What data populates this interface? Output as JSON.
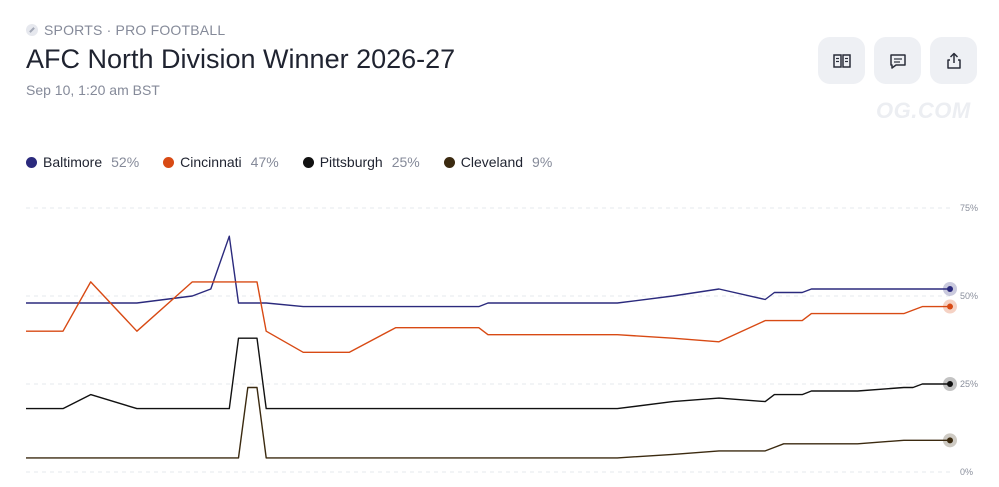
{
  "header": {
    "category": "SPORTS · PRO FOOTBALL",
    "title": "AFC North Division Winner 2026-27",
    "date": "Sep 10, 1:20 am BST",
    "watermark": "OG.COM"
  },
  "actions": {
    "icons": [
      "rules-book-icon",
      "comment-icon",
      "share-icon"
    ]
  },
  "legend": [
    {
      "name": "Baltimore",
      "value": "52%",
      "color": "#2b2a7d"
    },
    {
      "name": "Cincinnati",
      "value": "47%",
      "color": "#d84a14"
    },
    {
      "name": "Pittsburgh",
      "value": "25%",
      "color": "#111111"
    },
    {
      "name": "Cleveland",
      "value": "9%",
      "color": "#3b2a10"
    }
  ],
  "chart_data": {
    "type": "line",
    "title": "",
    "xlabel": "",
    "ylabel": "",
    "ylim": [
      0,
      75
    ],
    "yticks": [
      "75%",
      "50%",
      "25%",
      "0%"
    ],
    "grid": true,
    "legend_position": "top",
    "x": [
      0,
      4,
      7,
      12,
      18,
      20,
      22,
      23,
      24,
      24.5,
      25,
      26,
      30,
      35,
      40,
      45,
      48,
      49,
      50,
      52,
      53,
      55,
      56,
      57,
      58,
      59,
      60,
      61,
      62,
      64,
      70,
      75,
      80,
      81,
      82,
      84,
      85,
      90,
      95,
      96,
      97,
      98,
      100
    ],
    "series": [
      {
        "name": "Baltimore",
        "color": "#2b2a7d",
        "values": [
          48,
          48,
          48,
          48,
          50,
          52,
          67,
          48,
          48,
          48,
          48,
          48,
          47,
          47,
          47,
          47,
          47,
          47,
          48,
          48,
          48,
          48,
          48,
          48,
          48,
          48,
          48,
          48,
          48,
          48,
          50,
          52,
          49,
          51,
          51,
          51,
          52,
          52,
          52,
          52,
          52,
          52,
          52
        ]
      },
      {
        "name": "Cincinnati",
        "color": "#d84a14",
        "values": [
          40,
          40,
          54,
          40,
          54,
          54,
          54,
          54,
          54,
          54,
          54,
          40,
          34,
          34,
          41,
          41,
          41,
          41,
          39,
          39,
          39,
          39,
          39,
          39,
          39,
          39,
          39,
          39,
          39,
          39,
          38,
          37,
          43,
          43,
          43,
          43,
          45,
          45,
          45,
          46,
          47,
          47,
          47
        ]
      },
      {
        "name": "Pittsburgh",
        "color": "#111111",
        "values": [
          18,
          18,
          22,
          18,
          18,
          18,
          18,
          38,
          38,
          38,
          38,
          18,
          18,
          18,
          18,
          18,
          18,
          18,
          18,
          18,
          18,
          18,
          18,
          18,
          18,
          18,
          18,
          18,
          18,
          18,
          20,
          21,
          20,
          22,
          22,
          22,
          23,
          23,
          24,
          24,
          25,
          25,
          25
        ]
      },
      {
        "name": "Cleveland",
        "color": "#3b2a10",
        "values": [
          4,
          4,
          4,
          4,
          4,
          4,
          4,
          4,
          24,
          24,
          24,
          4,
          4,
          4,
          4,
          4,
          4,
          4,
          4,
          4,
          4,
          4,
          4,
          4,
          4,
          4,
          4,
          4,
          4,
          4,
          5,
          6,
          6,
          7,
          8,
          8,
          8,
          8,
          9,
          9,
          9,
          9,
          9
        ]
      }
    ]
  }
}
